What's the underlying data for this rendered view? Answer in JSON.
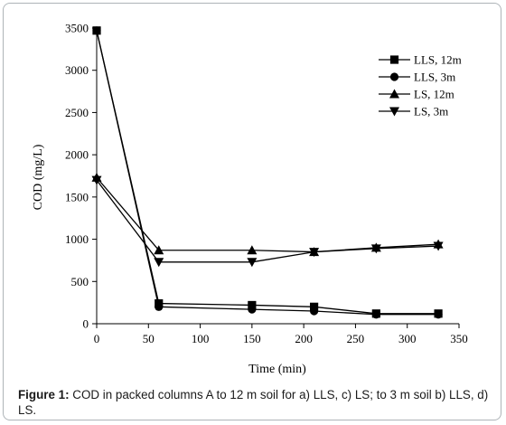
{
  "chart_data": {
    "type": "line",
    "xlabel": "Time (min)",
    "ylabel": "COD (mg/L)",
    "xlim": [
      0,
      350
    ],
    "ylim": [
      0,
      3500
    ],
    "xticks": [
      0,
      50,
      100,
      150,
      200,
      250,
      300,
      350
    ],
    "yticks": [
      0,
      500,
      1000,
      1500,
      2000,
      2500,
      3000,
      3500
    ],
    "grid": false,
    "legend_position": "top-right",
    "x": [
      0,
      60,
      150,
      210,
      270,
      330
    ],
    "series": [
      {
        "name": "LLS, 12m",
        "marker": "square",
        "values": [
          3470,
          240,
          220,
          200,
          120,
          120
        ]
      },
      {
        "name": "LLS, 3m",
        "marker": "circle",
        "values": [
          3470,
          200,
          170,
          150,
          110,
          110
        ]
      },
      {
        "name": "LS, 12m",
        "marker": "triangle-up",
        "values": [
          1730,
          870,
          870,
          850,
          900,
          940
        ]
      },
      {
        "name": "LS, 3m",
        "marker": "triangle-down",
        "values": [
          1700,
          730,
          730,
          850,
          890,
          920
        ]
      }
    ]
  },
  "caption": {
    "label": "Figure 1:",
    "text": " COD in packed columns A to 12 m soil for a) LLS, c) LS; to 3 m soil b) LLS, d) LS."
  }
}
